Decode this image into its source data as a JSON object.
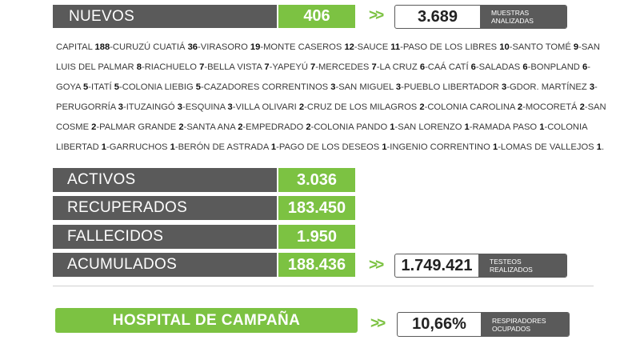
{
  "nuevos": {
    "label": "NUEVOS",
    "value": "406"
  },
  "muestras": {
    "value": "3.689",
    "label_line1": "MUESTRAS",
    "label_line2": "ANALIZADAS"
  },
  "arrow": ">>",
  "localities": [
    {
      "name": "CAPITAL",
      "count": "188"
    },
    {
      "name": "CURUZÚ CUATIÁ",
      "count": "36"
    },
    {
      "name": "VIRASORO",
      "count": "19"
    },
    {
      "name": "MONTE CASEROS",
      "count": "12"
    },
    {
      "name": "SAUCE",
      "count": "11"
    },
    {
      "name": "PASO DE LOS LIBRES",
      "count": "10"
    },
    {
      "name": "SANTO TOMÉ",
      "count": "9"
    },
    {
      "name": "SAN LUIS DEL PALMAR",
      "count": "8"
    },
    {
      "name": "RIACHUELO",
      "count": "7"
    },
    {
      "name": "BELLA VISTA",
      "count": "7"
    },
    {
      "name": "YAPEYÚ",
      "count": "7"
    },
    {
      "name": "MERCEDES",
      "count": "7"
    },
    {
      "name": "LA CRUZ",
      "count": "6"
    },
    {
      "name": "CAÁ CATÍ",
      "count": "6"
    },
    {
      "name": "SALADAS",
      "count": "6"
    },
    {
      "name": "BONPLAND",
      "count": "6"
    },
    {
      "name": "GOYA",
      "count": "5"
    },
    {
      "name": "ITATÍ",
      "count": "5"
    },
    {
      "name": "COLONIA LIEBIG",
      "count": "5"
    },
    {
      "name": "CAZADORES CORRENTINOS",
      "count": "3"
    },
    {
      "name": "SAN MIGUEL",
      "count": "3"
    },
    {
      "name": "PUEBLO LIBERTADOR",
      "count": "3"
    },
    {
      "name": "GDOR. MARTÍNEZ",
      "count": "3"
    },
    {
      "name": "PERUGORRÍA",
      "count": "3"
    },
    {
      "name": "ITUZAINGÓ",
      "count": "3"
    },
    {
      "name": "ESQUINA",
      "count": "3"
    },
    {
      "name": "VILLA OLIVARI",
      "count": "2"
    },
    {
      "name": "CRUZ DE LOS MILAGROS",
      "count": "2"
    },
    {
      "name": "COLONIA CAROLINA",
      "count": "2"
    },
    {
      "name": "MOCORETÁ",
      "count": "2"
    },
    {
      "name": "SAN COSME",
      "count": "2"
    },
    {
      "name": "PALMAR GRANDE",
      "count": "2"
    },
    {
      "name": "SANTA ANA",
      "count": "2"
    },
    {
      "name": "EMPEDRADO",
      "count": "2"
    },
    {
      "name": "COLONIA PANDO",
      "count": "1"
    },
    {
      "name": "SAN LORENZO",
      "count": "1"
    },
    {
      "name": "RAMADA PASO",
      "count": "1"
    },
    {
      "name": "COLONIA LIBERTAD",
      "count": "1"
    },
    {
      "name": "GARRUCHOS",
      "count": "1"
    },
    {
      "name": "BERÓN DE ASTRADA",
      "count": "1"
    },
    {
      "name": "PAGO DE LOS DESEOS",
      "count": "1"
    },
    {
      "name": "INGENIO CORRENTINO",
      "count": "1"
    },
    {
      "name": "LOMAS DE VALLEJOS",
      "count": "1"
    }
  ],
  "stats": [
    {
      "label": "ACTIVOS",
      "value": "3.036"
    },
    {
      "label": "RECUPERADOS",
      "value": "183.450"
    },
    {
      "label": "FALLECIDOS",
      "value": "1.950"
    },
    {
      "label": "ACUMULADOS",
      "value": "188.436"
    }
  ],
  "testeos": {
    "value": "1.749.421",
    "label_line1": "TESTEOS",
    "label_line2": "REALIZADOS"
  },
  "hospital": {
    "label": "HOSPITAL DE CAMPAÑA",
    "value": "10,66%",
    "label_line1": "RESPIRADORES",
    "label_line2": "OCUPADOS"
  },
  "colors": {
    "gray": "#5a5a5a",
    "green": "#7cc242"
  }
}
